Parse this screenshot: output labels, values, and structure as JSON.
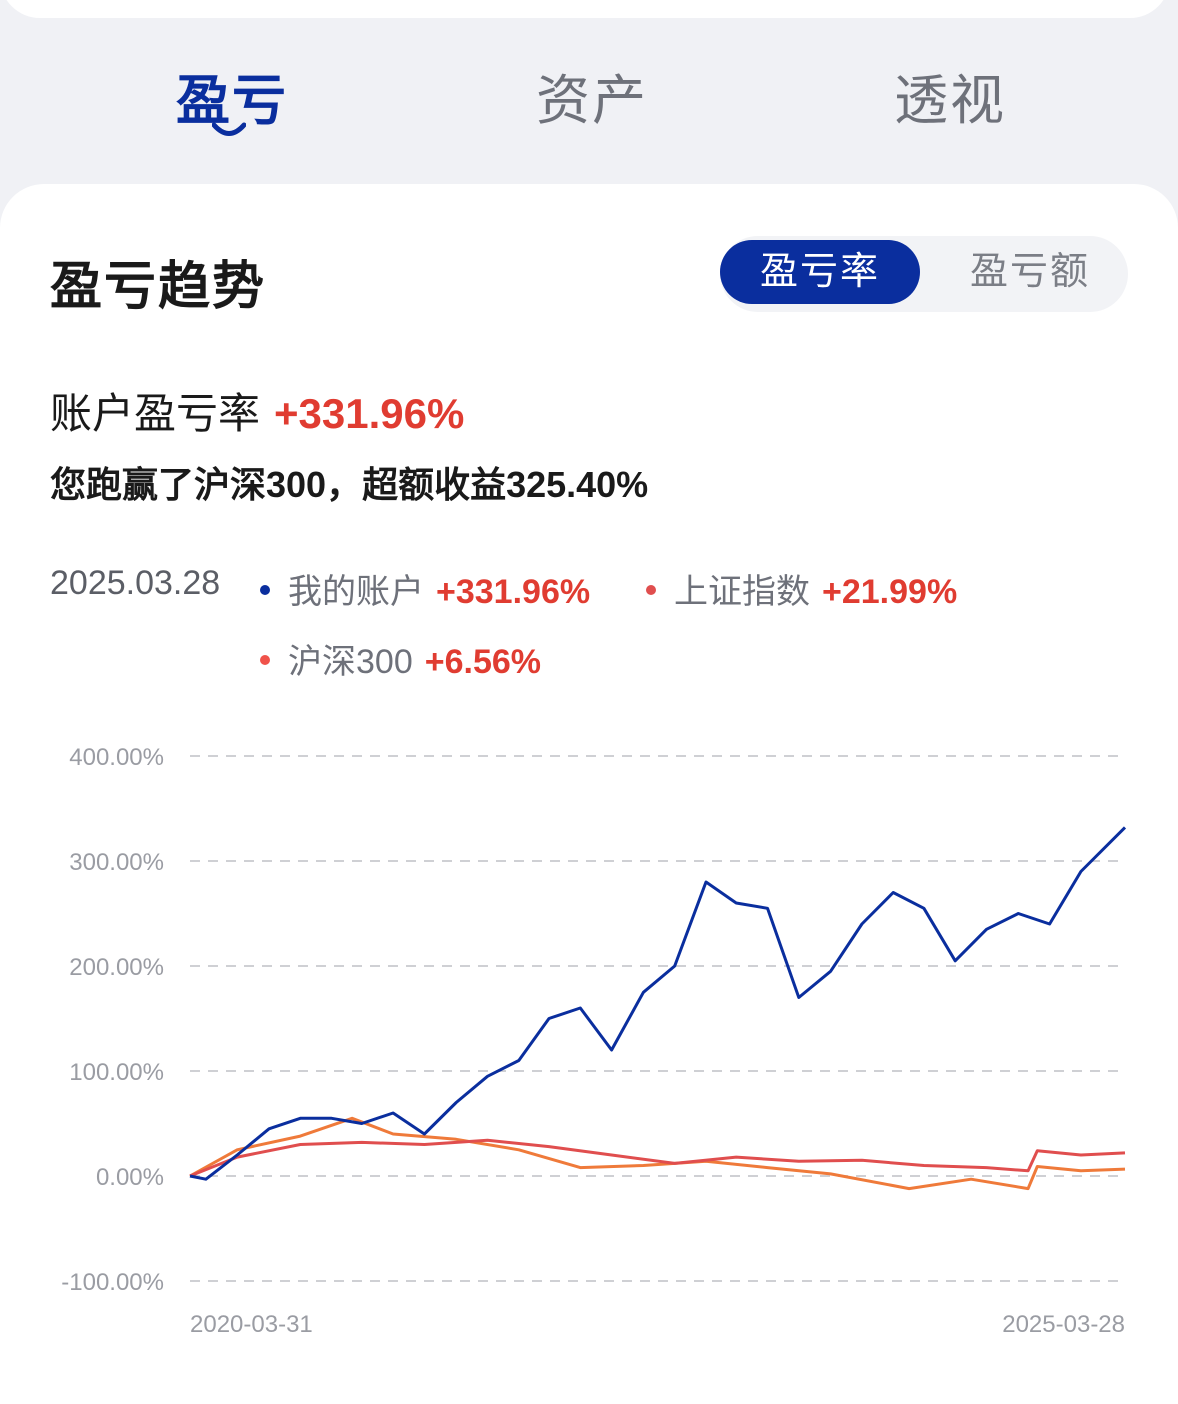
{
  "tabs": [
    {
      "label": "盈亏",
      "active": true
    },
    {
      "label": "资产",
      "active": false
    },
    {
      "label": "透视",
      "active": false
    }
  ],
  "panel": {
    "title": "盈亏趋势",
    "toggle": {
      "on_label": "盈亏率",
      "off_label": "盈亏额"
    },
    "rate_label": "账户盈亏率",
    "rate_value": "+331.96%",
    "beat_text": "您跑赢了沪深300，超额收益325.40%"
  },
  "legend": {
    "date": "2025.03.28",
    "items": [
      {
        "name": "我的账户",
        "value": "+331.96%",
        "color": "#0a2e9e"
      },
      {
        "name": "上证指数",
        "value": "+21.99%",
        "color": "#e04e4e"
      },
      {
        "name": "沪深300",
        "value": "+6.56%",
        "color": "#f0524a"
      }
    ]
  },
  "colors": {
    "accent": "#0a2e9e",
    "positive": "#e03c31",
    "account_line": "#0a2e9e",
    "sse_line": "#e04e4e",
    "csi300_line": "#ef7a3a"
  },
  "chart_data": {
    "type": "line",
    "ylim": [
      -100,
      400
    ],
    "yticks": [
      "400.00%",
      "300.00%",
      "200.00%",
      "100.00%",
      "0.00%",
      "-100.00%"
    ],
    "xtick_labels": [
      "2020-03-31",
      "2025-03-28"
    ],
    "x_range": [
      "2020-03-31",
      "2025-03-28"
    ],
    "grid": true,
    "series": [
      {
        "name": "我的账户",
        "color": "#0a2e9e",
        "x": [
          "2020-03-31",
          "2020-05-01",
          "2020-07-01",
          "2020-09-01",
          "2020-11-01",
          "2021-01-01",
          "2021-03-01",
          "2021-05-01",
          "2021-07-01",
          "2021-09-01",
          "2021-11-01",
          "2022-01-01",
          "2022-03-01",
          "2022-05-01",
          "2022-07-01",
          "2022-09-01",
          "2022-11-01",
          "2023-01-01",
          "2023-03-01",
          "2023-05-01",
          "2023-07-01",
          "2023-09-01",
          "2023-11-01",
          "2024-01-01",
          "2024-03-01",
          "2024-05-01",
          "2024-07-01",
          "2024-09-01",
          "2024-11-01",
          "2025-01-01",
          "2025-03-28"
        ],
        "values": [
          0,
          -3,
          20,
          45,
          55,
          55,
          50,
          60,
          40,
          70,
          95,
          110,
          150,
          160,
          120,
          175,
          200,
          280,
          260,
          255,
          170,
          195,
          240,
          270,
          255,
          205,
          235,
          250,
          240,
          290,
          332
        ]
      },
      {
        "name": "上证指数",
        "color": "#e04e4e",
        "x": [
          "2020-03-31",
          "2020-07-01",
          "2020-11-01",
          "2021-03-01",
          "2021-07-01",
          "2021-11-01",
          "2022-03-01",
          "2022-07-01",
          "2022-11-01",
          "2023-03-01",
          "2023-07-01",
          "2023-11-01",
          "2024-03-01",
          "2024-07-01",
          "2024-09-20",
          "2024-10-08",
          "2025-01-01",
          "2025-03-28"
        ],
        "values": [
          0,
          18,
          30,
          32,
          30,
          34,
          28,
          20,
          12,
          18,
          14,
          15,
          10,
          8,
          5,
          24,
          20,
          22
        ]
      },
      {
        "name": "沪深300",
        "color": "#ef7a3a",
        "x": [
          "2020-03-31",
          "2020-07-01",
          "2020-11-01",
          "2021-02-10",
          "2021-05-01",
          "2021-09-01",
          "2022-01-01",
          "2022-05-01",
          "2022-09-01",
          "2023-01-01",
          "2023-05-01",
          "2023-09-01",
          "2024-02-01",
          "2024-06-01",
          "2024-09-20",
          "2024-10-08",
          "2025-01-01",
          "2025-03-28"
        ],
        "values": [
          0,
          25,
          38,
          55,
          40,
          35,
          25,
          8,
          10,
          14,
          8,
          2,
          -12,
          -3,
          -12,
          9,
          5,
          6.56
        ]
      }
    ]
  }
}
